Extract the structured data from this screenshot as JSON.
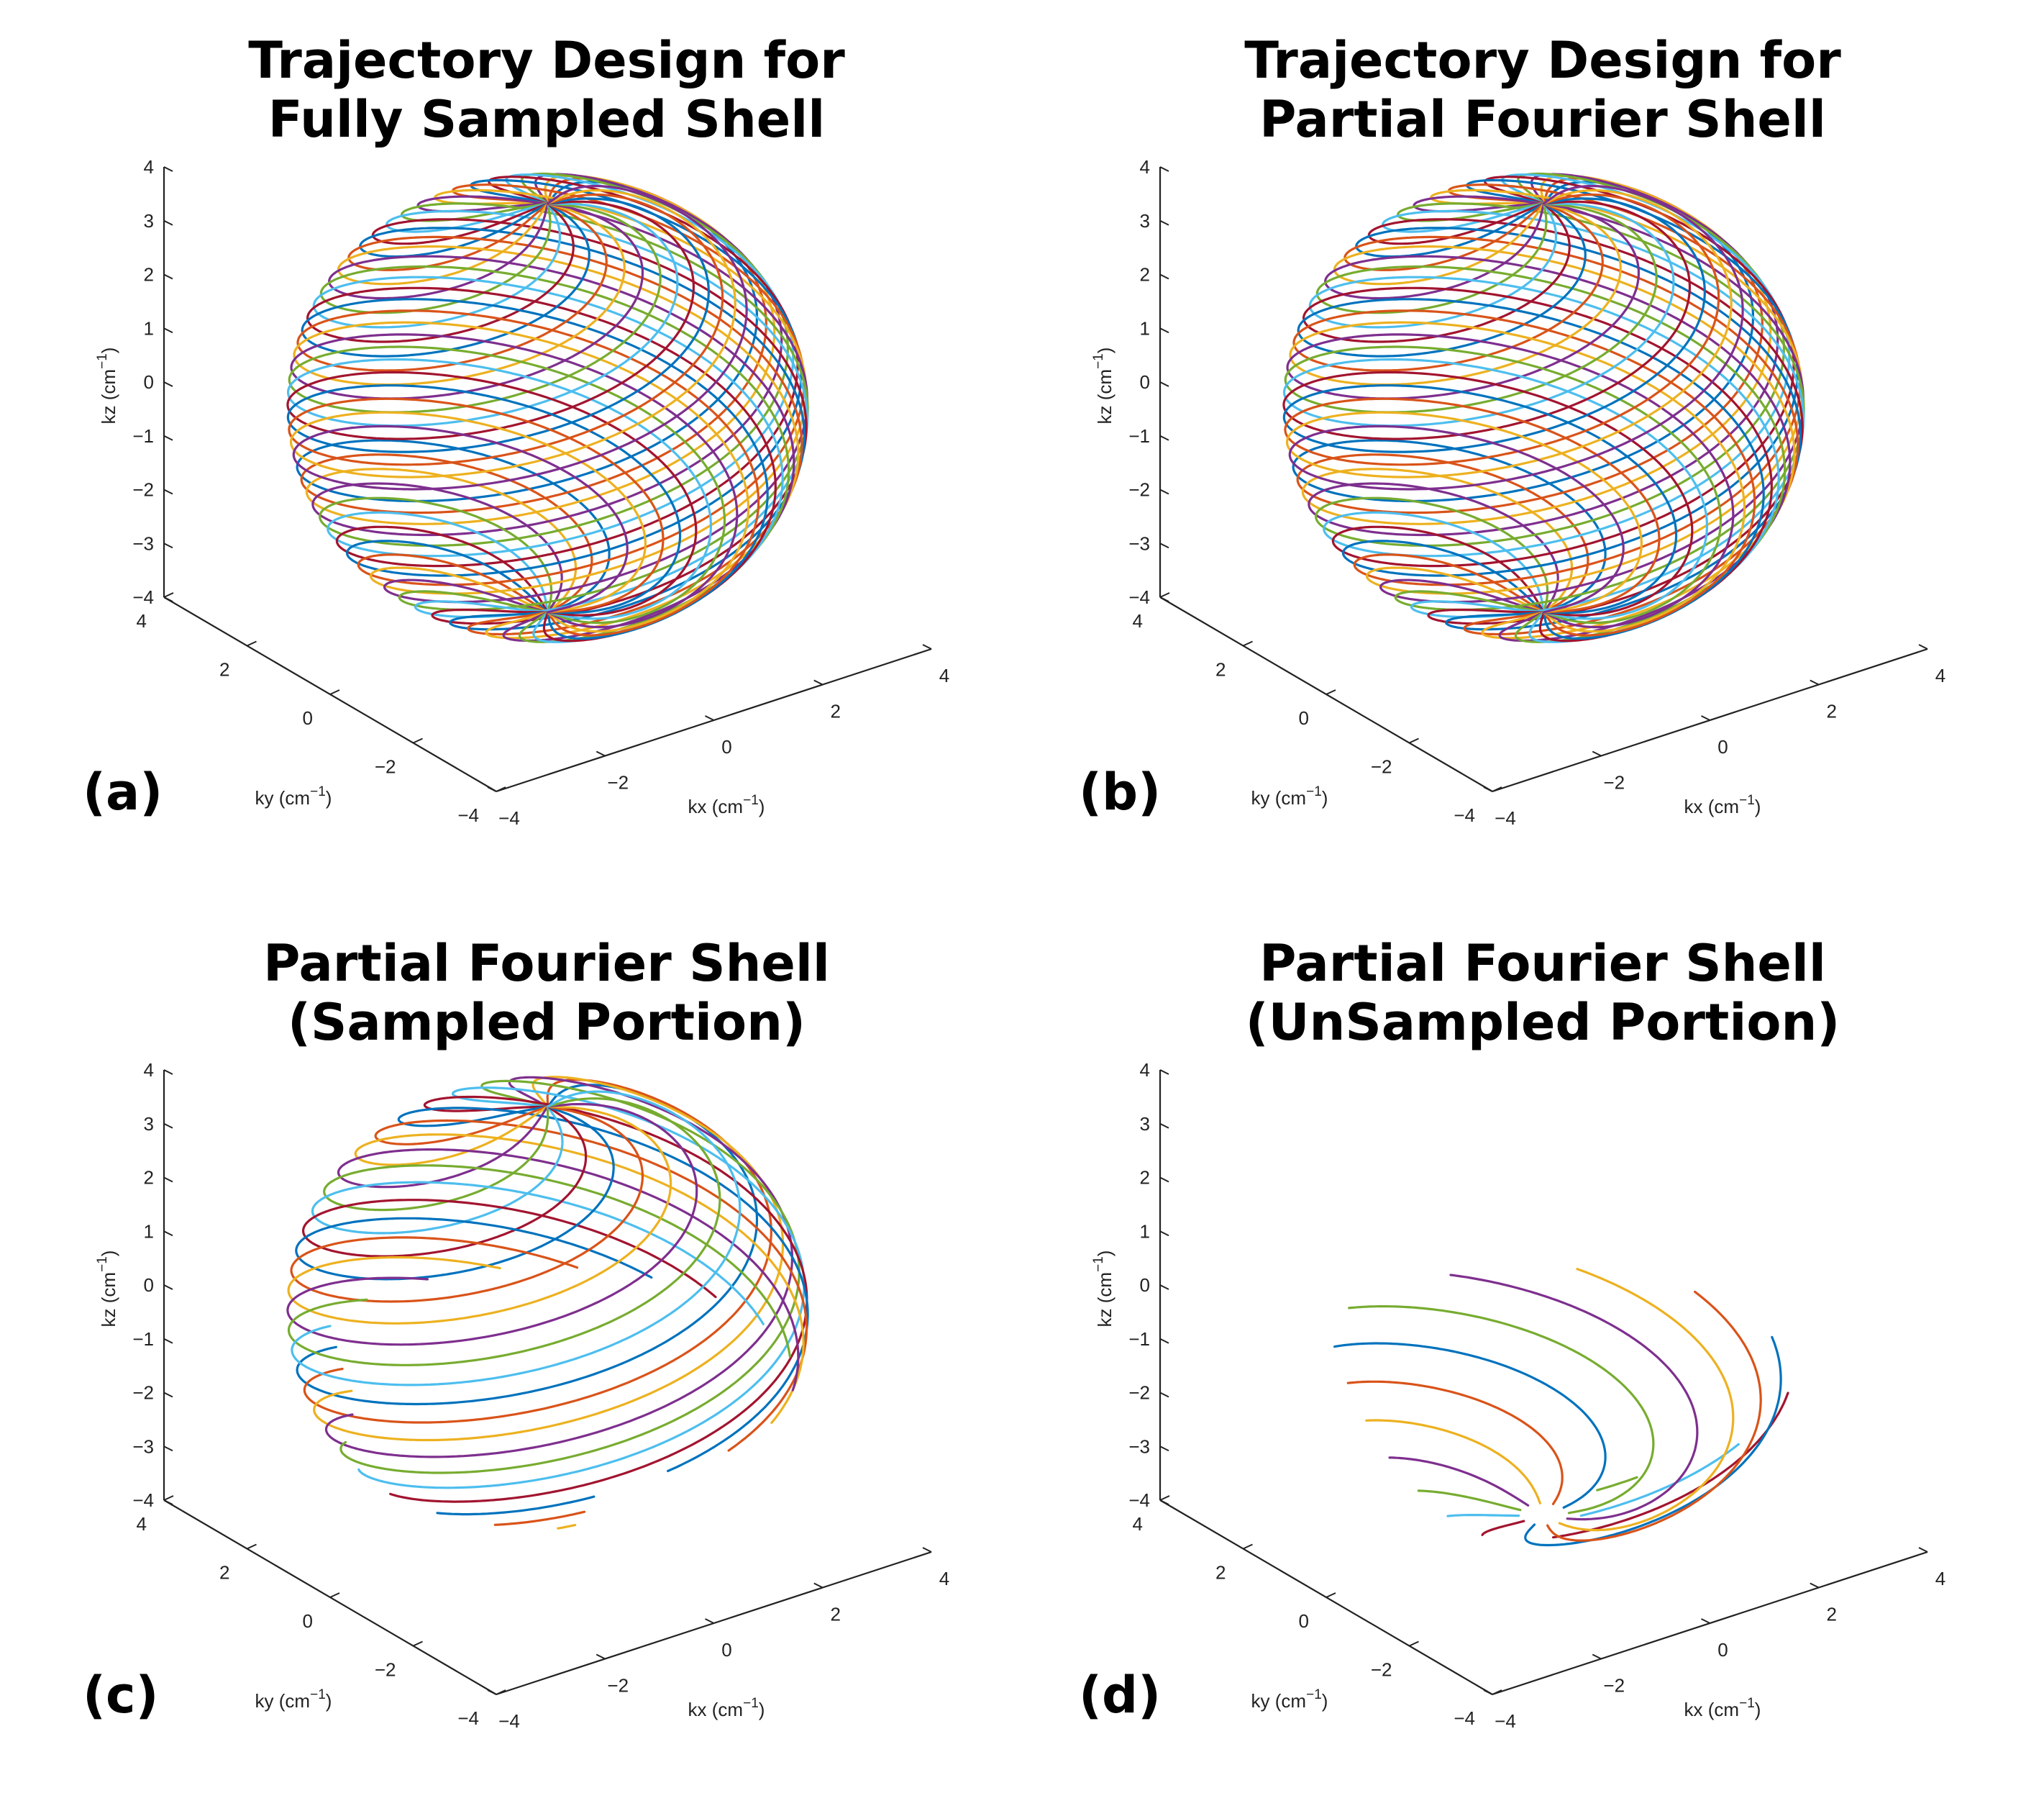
{
  "figure": {
    "panels": [
      {
        "id": "a",
        "panel_label": "(a)",
        "title_lines": [
          "Trajectory Design for",
          "Fully Sampled Shell"
        ],
        "portion": "full"
      },
      {
        "id": "b",
        "panel_label": "(b)",
        "title_lines": [
          "Trajectory Design for",
          "Partial Fourier Shell"
        ],
        "portion": "partial"
      },
      {
        "id": "c",
        "panel_label": "(c)",
        "title_lines": [
          "Partial Fourier Shell",
          "(Sampled Portion)"
        ],
        "portion": "sampled"
      },
      {
        "id": "d",
        "panel_label": "(d)",
        "title_lines": [
          "Partial Fourier Shell",
          "(UnSampled Portion)"
        ],
        "portion": "unsampled"
      }
    ],
    "axes": {
      "kz_ticks": [
        "4",
        "3",
        "2",
        "1",
        "0",
        "-1",
        "-2",
        "-3",
        "-4"
      ],
      "ky_ticks": [
        "4",
        "2",
        "0",
        "-2",
        "-4"
      ],
      "kx_ticks": [
        "-4",
        "-2",
        "0",
        "2",
        "4"
      ],
      "kz_label": "kz (cm",
      "ky_label": "ky (cm",
      "kx_label": "kx (cm",
      "unit_exponent": "-1",
      "unit_close": ")"
    },
    "series_colors": [
      "#0072BD",
      "#D95319",
      "#EDB120",
      "#7E2F8E",
      "#77AC30",
      "#4DBEEE",
      "#A2142F"
    ]
  },
  "chart_data": [
    {
      "type": "line3d",
      "title": "Trajectory Design for Fully Sampled Shell",
      "xlabel": "kx (cm^-1)",
      "ylabel": "ky (cm^-1)",
      "zlabel": "kz (cm^-1)",
      "xlim": [
        -4,
        4
      ],
      "ylim": [
        -4,
        4
      ],
      "zlim": [
        -4,
        4
      ],
      "shell_radius": 3.8,
      "series_count": 32,
      "z_range": [
        -3.8,
        3.8
      ]
    },
    {
      "type": "line3d",
      "title": "Trajectory Design for Partial Fourier Shell",
      "xlabel": "kx (cm^-1)",
      "ylabel": "ky (cm^-1)",
      "zlabel": "kz (cm^-1)",
      "xlim": [
        -4,
        4
      ],
      "ylim": [
        -4,
        4
      ],
      "zlim": [
        -4,
        4
      ],
      "shell_radius": 3.8,
      "series_count": 32,
      "z_range": [
        -3.8,
        3.8
      ]
    },
    {
      "type": "line3d",
      "title": "Partial Fourier Shell (Sampled Portion)",
      "xlabel": "kx (cm^-1)",
      "ylabel": "ky (cm^-1)",
      "zlabel": "kz (cm^-1)",
      "xlim": [
        -4,
        4
      ],
      "ylim": [
        -4,
        4
      ],
      "zlim": [
        -4,
        4
      ],
      "shell_radius": 3.8,
      "series_count": 20,
      "z_range": [
        -3.8,
        3.8
      ]
    },
    {
      "type": "line3d",
      "title": "Partial Fourier Shell (UnSampled Portion)",
      "xlabel": "kx (cm^-1)",
      "ylabel": "ky (cm^-1)",
      "zlabel": "kz (cm^-1)",
      "xlim": [
        -4,
        4
      ],
      "ylim": [
        -4,
        4
      ],
      "zlim": [
        -4,
        4
      ],
      "shell_radius": 3.8,
      "series_count": 12,
      "z_range": [
        -3.8,
        -1.2
      ]
    }
  ]
}
